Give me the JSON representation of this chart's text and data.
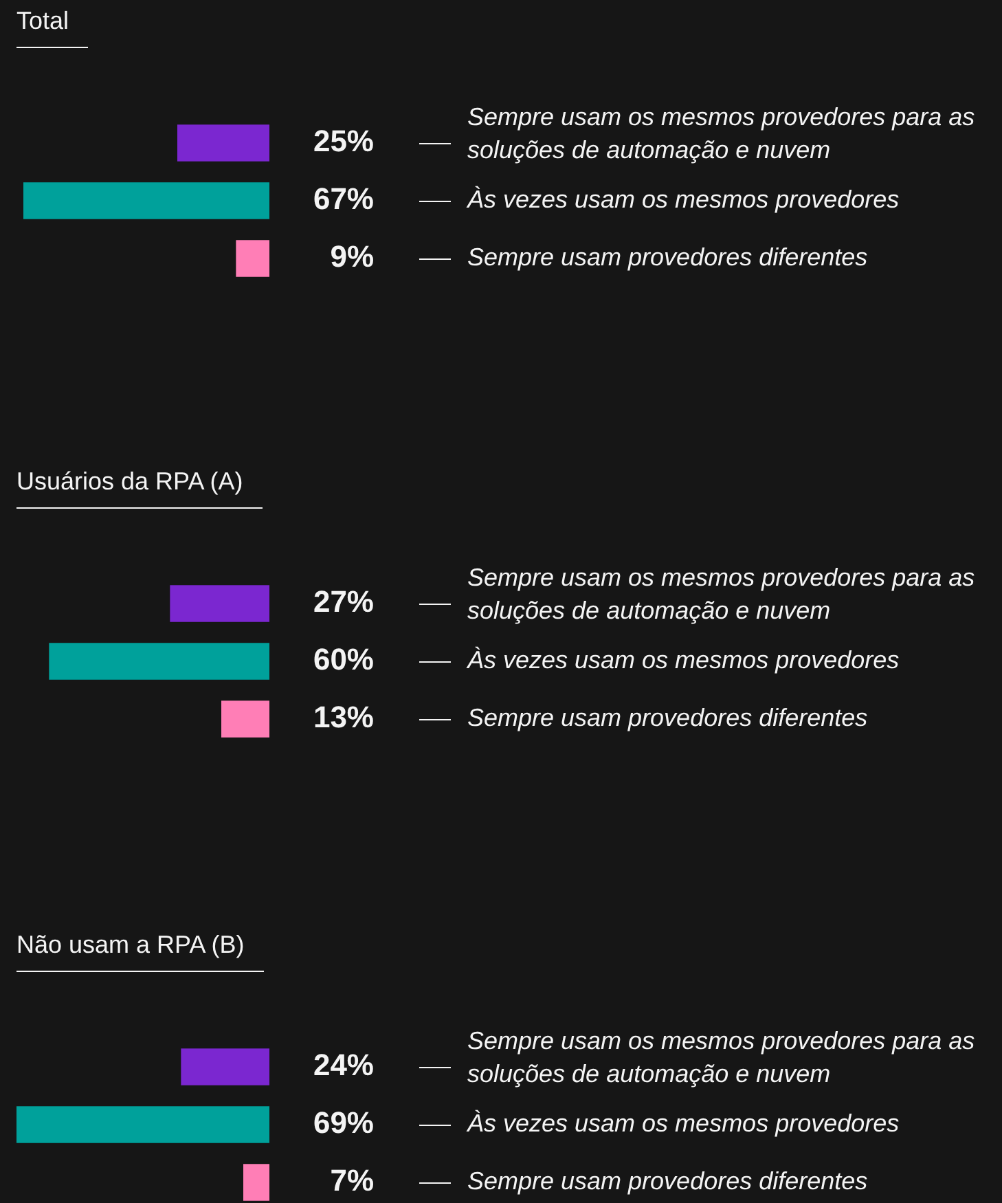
{
  "chart_data": [
    {
      "type": "bar",
      "orientation": "horizontal",
      "title": "Total",
      "categories": [
        "Sempre usam os mesmos provedores para as soluções de automação e nuvem",
        "Às vezes usam os mesmos provedores",
        "Sempre usam provedores diferentes"
      ],
      "values": [
        25,
        67,
        9
      ],
      "value_labels": [
        "25%",
        "67%",
        "9%"
      ],
      "colors": [
        "#7b27d0",
        "#00a19b",
        "#ff7eb6"
      ]
    },
    {
      "type": "bar",
      "orientation": "horizontal",
      "title": "Usuários da RPA (A)",
      "categories": [
        "Sempre usam os mesmos provedores para as soluções de automação e nuvem",
        "Às vezes usam os mesmos provedores",
        "Sempre usam provedores diferentes"
      ],
      "values": [
        27,
        60,
        13
      ],
      "value_labels": [
        "27%",
        "60%",
        "13%"
      ],
      "colors": [
        "#7b27d0",
        "#00a19b",
        "#ff7eb6"
      ]
    },
    {
      "type": "bar",
      "orientation": "horizontal",
      "title": "Não usam a RPA (B)",
      "categories": [
        "Sempre usam os mesmos provedores para as soluções de automação e nuvem",
        "Às vezes usam os mesmos provedores",
        "Sempre usam provedores diferentes"
      ],
      "values": [
        24,
        69,
        7
      ],
      "value_labels": [
        "24%",
        "69%",
        "7%"
      ],
      "colors": [
        "#7b27d0",
        "#00a19b",
        "#ff7eb6"
      ]
    }
  ]
}
